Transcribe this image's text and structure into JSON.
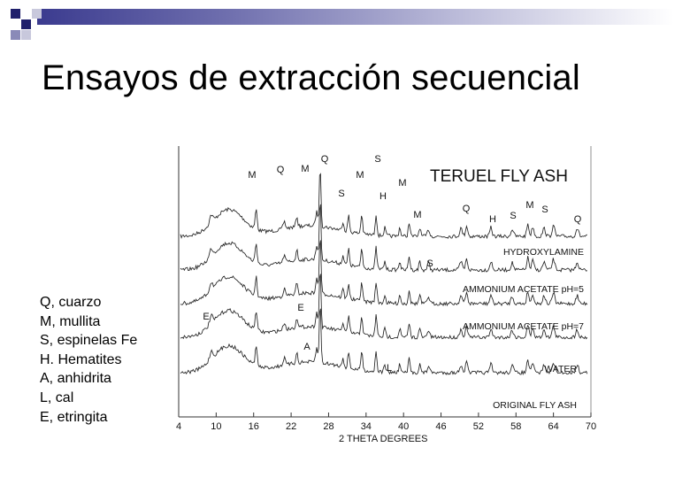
{
  "slide": {
    "title": "Ensayos de extracción secuencial",
    "accent_colors": [
      "#1f1f6b",
      "#3b3b8f",
      "#8a8ab8",
      "#c8c8dc"
    ]
  },
  "legend": [
    "Q, cuarzo",
    "M, mullita",
    "S, espinelas Fe",
    "H. Hematites",
    "A, anhidrita",
    "L, cal",
    "E, etringita"
  ],
  "figure": {
    "title": "TERUEL FLY ASH",
    "x_axis_label": "2 THETA DEGREES",
    "x_ticks": [
      "4",
      "10",
      "16",
      "22",
      "28",
      "34",
      "40",
      "46",
      "52",
      "58",
      "64",
      "70"
    ],
    "traces": [
      "HYDROXYLAMINE",
      "AMMONIUM ACETATE pH=5",
      "AMMONIUM ACETATE pH=7",
      "WATER",
      "ORIGINAL FLY ASH"
    ],
    "peak_letters_top": [
      "M",
      "Q",
      "M",
      "Q",
      "S",
      "S",
      "M",
      "H",
      "M",
      "M",
      "Q",
      "H",
      "S",
      "M",
      "S",
      "Q"
    ],
    "peak_letters_inner": [
      "S",
      "E",
      "E",
      "A",
      "L"
    ]
  }
}
